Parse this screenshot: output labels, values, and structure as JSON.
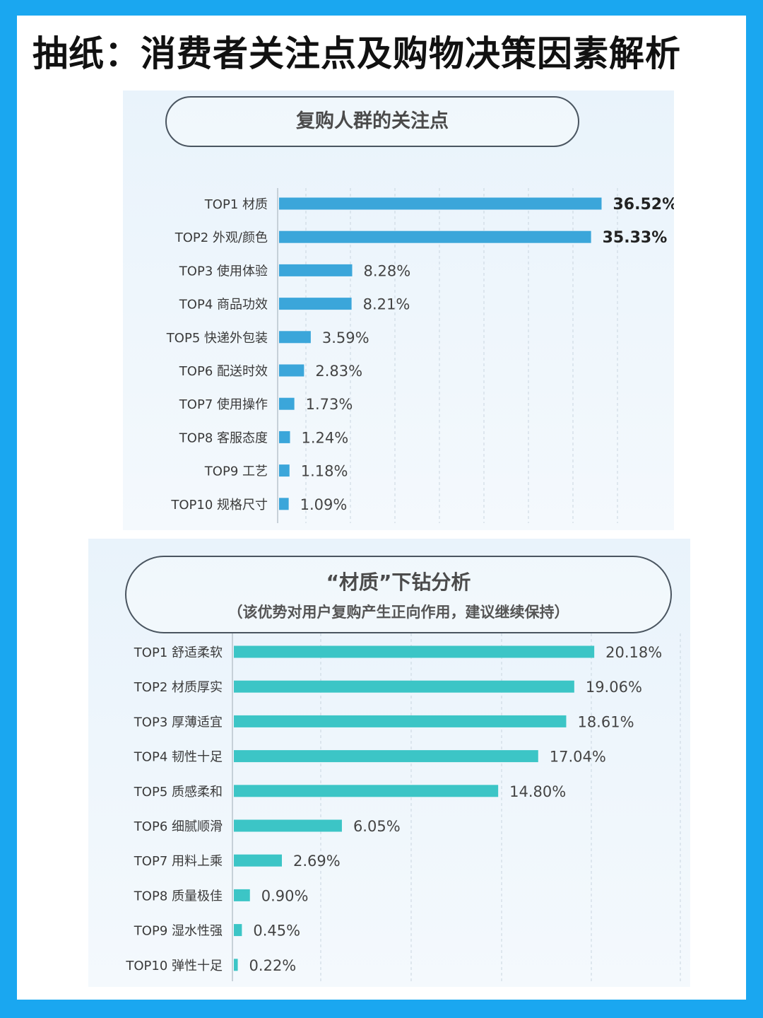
{
  "page_title": "抽纸：消费者关注点及购物决策因素解析",
  "chart_data": [
    {
      "type": "bar",
      "orientation": "horizontal",
      "title": "复购人群的关注点",
      "subtitle": "",
      "categories": [
        "TOP1 材质",
        "TOP2 外观/颜色",
        "TOP3 使用体验",
        "TOP4 商品功效",
        "TOP5 快递外包装",
        "TOP6 配送时效",
        "TOP7 使用操作",
        "TOP8 客服态度",
        "TOP9 工艺",
        "TOP10 规格尺寸"
      ],
      "values": [
        36.52,
        35.33,
        8.28,
        8.21,
        3.59,
        2.83,
        1.73,
        1.24,
        1.18,
        1.09
      ],
      "value_labels": [
        "36.52%",
        "35.33%",
        "8.28%",
        "8.21%",
        "3.59%",
        "2.83%",
        "1.73%",
        "1.24%",
        "1.18%",
        "1.09%"
      ],
      "bold_labels": [
        true,
        true,
        false,
        false,
        false,
        false,
        false,
        false,
        false,
        false
      ],
      "xlim": [
        0,
        40
      ],
      "bar_color": "#3ba6da",
      "grid": true
    },
    {
      "type": "bar",
      "orientation": "horizontal",
      "title": "“材质”下钻分析",
      "subtitle": "（该优势对用户复购产生正向作用，建议继续保持）",
      "categories": [
        "TOP1 舒适柔软",
        "TOP2 材质厚实",
        "TOP3 厚薄适宜",
        "TOP4 韧性十足",
        "TOP5 质感柔和",
        "TOP6 细腻顺滑",
        "TOP7 用料上乘",
        "TOP8 质量极佳",
        "TOP9 湿水性强",
        "TOP10 弹性十足"
      ],
      "values": [
        20.18,
        19.06,
        18.61,
        17.04,
        14.8,
        6.05,
        2.69,
        0.9,
        0.45,
        0.22
      ],
      "value_labels": [
        "20.18%",
        "19.06%",
        "18.61%",
        "17.04%",
        "14.80%",
        "6.05%",
        "2.69%",
        "0.90%",
        "0.45%",
        "0.22%"
      ],
      "bold_labels": [
        false,
        false,
        false,
        false,
        false,
        false,
        false,
        false,
        false,
        false
      ],
      "xlim": [
        0,
        25
      ],
      "bar_color": "#3cc5c6",
      "grid": true
    }
  ]
}
